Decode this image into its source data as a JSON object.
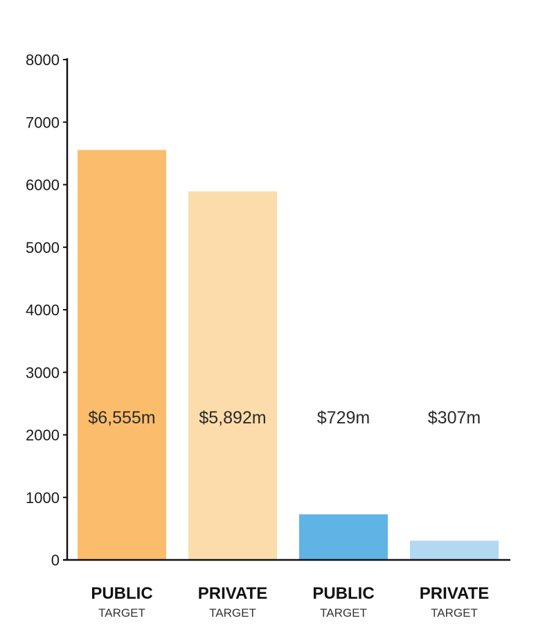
{
  "chart_data": {
    "type": "bar",
    "title": "",
    "xlabel": "",
    "ylabel": "",
    "ylim": [
      0,
      8000
    ],
    "yticks": [
      0,
      1000,
      2000,
      3000,
      4000,
      5000,
      6000,
      7000,
      8000
    ],
    "grid": false,
    "legend": "none",
    "bars": [
      {
        "category": "PUBLIC",
        "sublabel": "TARGET",
        "value": 6555,
        "label": "$6,555m",
        "color": "#fbbd6b"
      },
      {
        "category": "PRIVATE",
        "sublabel": "TARGET",
        "value": 5892,
        "label": "$5,892m",
        "color": "#fcdcaa"
      },
      {
        "category": "PUBLIC",
        "sublabel": "TARGET",
        "value": 729,
        "label": "$729m",
        "color": "#5fb4e5"
      },
      {
        "category": "PRIVATE",
        "sublabel": "TARGET",
        "value": 307,
        "label": "$307m",
        "color": "#b3d8f2"
      }
    ]
  }
}
